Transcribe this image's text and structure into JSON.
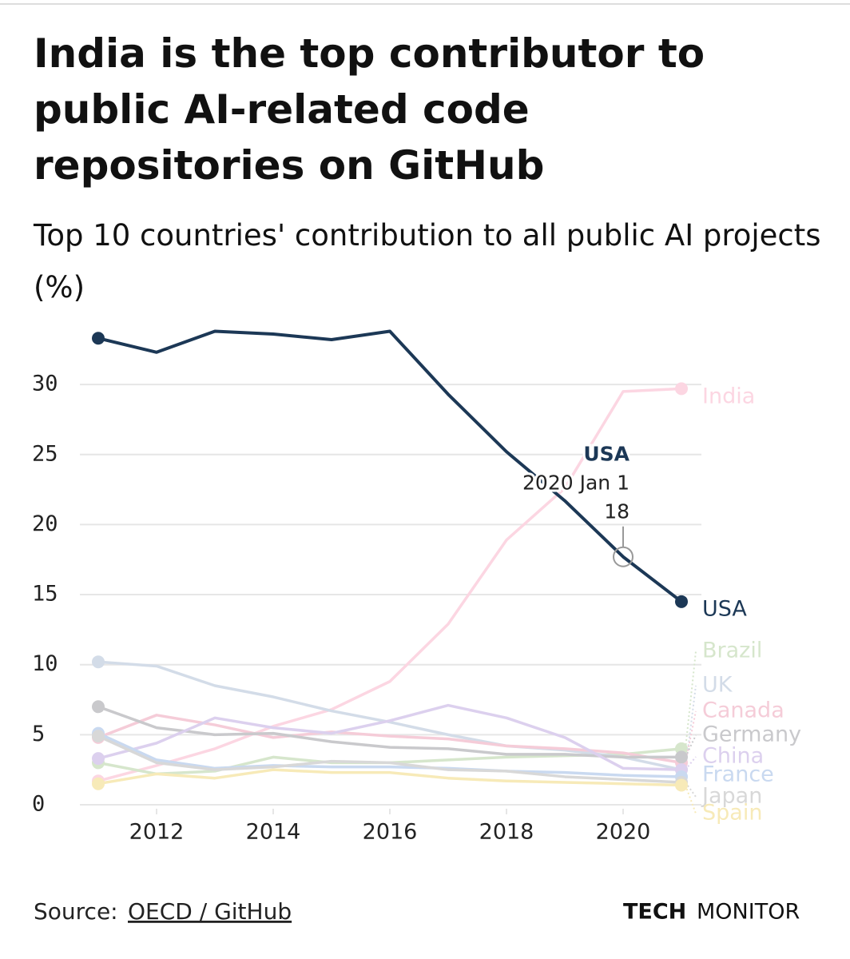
{
  "chart_data": {
    "type": "line",
    "title": "India is the top contributor to public AI-related code repositories on GitHub",
    "subtitle": "Top 10 countries' contribution to all public AI projects (%)",
    "x": [
      2011,
      2012,
      2013,
      2014,
      2015,
      2016,
      2017,
      2018,
      2019,
      2020,
      2021
    ],
    "xlim": [
      2011,
      2021
    ],
    "xticks": [
      2012,
      2014,
      2016,
      2018,
      2020
    ],
    "ylim": [
      0,
      34
    ],
    "yticks": [
      0,
      5,
      10,
      15,
      20,
      25,
      30
    ],
    "grid": true,
    "series": [
      {
        "name": "India",
        "color": "#fcd6e2",
        "values": [
          1.7,
          2.8,
          4.0,
          5.6,
          6.8,
          8.8,
          12.9,
          18.9,
          22.6,
          29.5,
          29.7
        ]
      },
      {
        "name": "Brazil",
        "color": "#d6e6cc",
        "values": [
          3.0,
          2.2,
          2.4,
          3.4,
          3.0,
          3.0,
          3.2,
          3.4,
          3.5,
          3.6,
          4.0
        ]
      },
      {
        "name": "UK",
        "color": "#d3dce8",
        "values": [
          10.2,
          9.9,
          8.5,
          7.7,
          6.7,
          5.9,
          5.0,
          4.2,
          3.9,
          3.4,
          2.5
        ]
      },
      {
        "name": "Canada",
        "color": "#f5ccd8",
        "values": [
          4.8,
          6.4,
          5.7,
          4.8,
          5.2,
          4.9,
          4.7,
          4.2,
          4.0,
          3.7,
          3.0
        ]
      },
      {
        "name": "Germany",
        "color": "#c9c9cc",
        "values": [
          7.0,
          5.5,
          5.0,
          5.1,
          4.5,
          4.1,
          4.0,
          3.6,
          3.6,
          3.4,
          3.4
        ]
      },
      {
        "name": "China",
        "color": "#dcd0ee",
        "values": [
          3.3,
          4.4,
          6.2,
          5.5,
          5.1,
          6.0,
          7.1,
          6.2,
          4.8,
          2.6,
          2.5
        ]
      },
      {
        "name": "France",
        "color": "#c9d9f0",
        "values": [
          5.1,
          3.2,
          2.6,
          2.8,
          2.7,
          2.7,
          2.6,
          2.4,
          2.3,
          2.1,
          2.0
        ]
      },
      {
        "name": "Japan",
        "color": "#d8d8d8",
        "values": [
          4.9,
          3.0,
          2.5,
          2.7,
          3.1,
          3.0,
          2.5,
          2.4,
          2.0,
          1.8,
          1.6
        ]
      },
      {
        "name": "Spain",
        "color": "#f7eab8",
        "values": [
          1.5,
          2.2,
          1.9,
          2.5,
          2.3,
          2.3,
          1.9,
          1.7,
          1.6,
          1.5,
          1.4
        ]
      },
      {
        "name": "USA",
        "color": "#1c3856",
        "values": [
          33.3,
          32.3,
          33.8,
          33.6,
          33.2,
          33.8,
          29.3,
          25.2,
          21.7,
          17.7,
          14.5
        ]
      }
    ],
    "annotation": {
      "series": "USA",
      "date": "2020 Jan 1",
      "value_label": "18"
    },
    "source_prefix": "Source:",
    "source": "OECD / GitHub",
    "brand_bold": "TECH",
    "brand": "MONITOR"
  }
}
